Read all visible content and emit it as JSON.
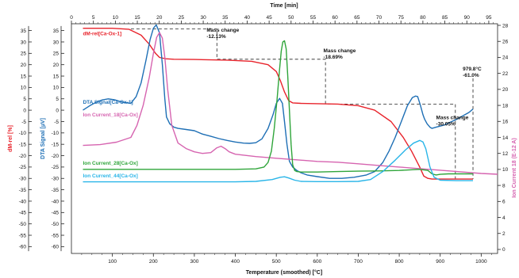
{
  "chart_data": {
    "type": "line",
    "xlabel_bottom": "Temperature (smoothed) [°C]",
    "xlabel_top": "Time [min]",
    "ylabel_left1": "dM-rel [%]",
    "ylabel_left2": "DTA Signal [µV]",
    "ylabel_right": "Ion Current  18 (E-12 A)",
    "x_temperature_range": [
      0,
      1040
    ],
    "x_temperature_ticks": [
      100,
      200,
      300,
      400,
      500,
      600,
      700,
      800,
      900,
      1000
    ],
    "x_time_range": [
      0,
      97
    ],
    "x_time_ticks": [
      0,
      5,
      10,
      15,
      20,
      25,
      30,
      35,
      40,
      45,
      50,
      55,
      60,
      65,
      70,
      75,
      80,
      85,
      90,
      95
    ],
    "y_left_range": [
      -63,
      38
    ],
    "y_left_ticks": [
      -60,
      -55,
      -50,
      -45,
      -40,
      -35,
      -30,
      -25,
      -20,
      -15,
      -10,
      -5,
      0,
      5,
      10,
      15,
      20,
      25,
      30,
      35
    ],
    "y_right_range": [
      -0.5,
      28.2
    ],
    "y_right_ticks": [
      0,
      2,
      4,
      6,
      8,
      10,
      12,
      14,
      16,
      18,
      20,
      22,
      24,
      26,
      28
    ],
    "series": [
      {
        "name": "dM-rel[Ca-Ox-1]",
        "color": "#e8232b",
        "axis": "left",
        "x": [
          28,
          100,
          140,
          170,
          190,
          205,
          215,
          230,
          250,
          300,
          380,
          440,
          480,
          500,
          510,
          520,
          530,
          540,
          560,
          650,
          700,
          740,
          780,
          810,
          830,
          850,
          860,
          870,
          880,
          900,
          980
        ],
        "y": [
          36,
          36,
          35.6,
          33,
          29,
          25,
          23.2,
          22.6,
          22.4,
          22.3,
          22,
          21.5,
          20,
          17,
          13,
          8,
          4.2,
          3.2,
          3,
          2.7,
          2,
          0,
          -5,
          -12,
          -18,
          -25,
          -29,
          -30,
          -30.3,
          -30.3,
          -30.3
        ]
      },
      {
        "name": "DTA Signal[Ca-Ox-1]",
        "color": "#1e6fb5",
        "axis": "left",
        "x": [
          28,
          45,
          60,
          75,
          90,
          105,
          125,
          145,
          158,
          170,
          182,
          192,
          200,
          207,
          215,
          222,
          228,
          232,
          240,
          250,
          260,
          280,
          300,
          320,
          340,
          360,
          380,
          400,
          420,
          435,
          450,
          465,
          480,
          492,
          500,
          508,
          515,
          520,
          526,
          532,
          540,
          550,
          560,
          575,
          600,
          630,
          660,
          690,
          720,
          740,
          760,
          775,
          790,
          805,
          820,
          832,
          840,
          845,
          852,
          858,
          862,
          868,
          875,
          880,
          890,
          910,
          940,
          970,
          980
        ],
        "y": [
          0,
          2,
          3.5,
          4.5,
          5,
          4.6,
          3.5,
          3,
          6,
          12,
          22,
          31,
          36,
          37.5,
          34,
          20,
          5,
          -3,
          -6,
          -7.5,
          -8,
          -8.5,
          -9,
          -10.5,
          -11.5,
          -12.5,
          -13.3,
          -14,
          -14.5,
          -14.6,
          -14.3,
          -12.6,
          -8,
          -2,
          3,
          5.2,
          3,
          -5,
          -15,
          -22.5,
          -25,
          -26.5,
          -27.5,
          -28.5,
          -29.2,
          -30,
          -30,
          -29.5,
          -28.5,
          -27,
          -23,
          -18,
          -12,
          -5,
          2,
          5.5,
          6.2,
          6,
          2,
          -2,
          -4,
          -6,
          -7.5,
          -8,
          -7.5,
          -6.5,
          -4,
          -1,
          0.5
        ]
      },
      {
        "name": "Ion Current_18[Ca-Ox]",
        "color": "#d664b0",
        "axis": "right",
        "x": [
          28,
          70,
          110,
          145,
          160,
          175,
          190,
          200,
          208,
          215,
          222,
          228,
          235,
          245,
          260,
          280,
          300,
          320,
          340,
          355,
          365,
          375,
          385,
          400,
          450,
          500,
          550,
          600,
          650,
          700,
          750,
          800,
          850,
          900,
          950,
          1000,
          1040
        ],
        "y": [
          13,
          13.1,
          13.4,
          14,
          15.5,
          18,
          21.5,
          24.5,
          26.5,
          27.1,
          26.4,
          24,
          20,
          15.5,
          13.3,
          12.6,
          12.2,
          12,
          12.1,
          12.7,
          12.9,
          12.6,
          12.2,
          11.9,
          11.6,
          11.4,
          11.2,
          11,
          10.9,
          10.7,
          10.5,
          10.3,
          10.1,
          9.9,
          9.7,
          9.5,
          9.4
        ]
      },
      {
        "name": "Ion Current_28[Ca-Ox]",
        "color": "#2fa53a",
        "axis": "left",
        "x": [
          28,
          200,
          400,
          450,
          470,
          480,
          488,
          495,
          502,
          508,
          512,
          516,
          520,
          524,
          528,
          532,
          536,
          540,
          545,
          550,
          560,
          600,
          650,
          700,
          750,
          800,
          850,
          870,
          880,
          890,
          900,
          920,
          980
        ],
        "y": [
          -26,
          -26,
          -26,
          -25.8,
          -25,
          -23,
          -18,
          -8,
          5,
          18,
          26,
          30,
          30.5,
          27,
          15,
          0,
          -15,
          -24,
          -26.5,
          -27,
          -27.2,
          -27.2,
          -27,
          -26.8,
          -26.7,
          -26.5,
          -26,
          -26.5,
          -28,
          -28.5,
          -28.2,
          -28,
          -28
        ]
      },
      {
        "name": "Ion Current_44[Ca-Ox]",
        "color": "#29b5e8",
        "axis": "left",
        "x": [
          28,
          200,
          400,
          450,
          490,
          510,
          520,
          530,
          545,
          560,
          600,
          650,
          700,
          730,
          760,
          790,
          815,
          835,
          850,
          858,
          865,
          875,
          885,
          900,
          940,
          980
        ],
        "y": [
          -31.5,
          -31.5,
          -31.5,
          -31.3,
          -30.5,
          -29.5,
          -29.3,
          -29.8,
          -30.8,
          -31.3,
          -31.4,
          -31.4,
          -31.3,
          -30.5,
          -27,
          -22,
          -17.5,
          -14.5,
          -13.3,
          -14,
          -17,
          -25,
          -29.5,
          -30.8,
          -31,
          -31
        ]
      }
    ],
    "series_labels": [
      {
        "text": "dM-rel[Ca-Ox-1]",
        "color": "#e8232b",
        "at": [
          28,
          33
        ]
      },
      {
        "text": "DTA Signal[Ca-Ox-1]",
        "color": "#1e6fb5",
        "at": [
          28,
          2.8
        ]
      },
      {
        "text": "Ion Current_18[Ca-Ox]",
        "color": "#d664b0",
        "at": [
          28,
          -2.8
        ]
      },
      {
        "text": "Ion Current_28[Ca-Ox]",
        "color": "#2fa53a",
        "at": [
          28,
          -24
        ]
      },
      {
        "text": "Ion Current_44[Ca-Ox]",
        "color": "#29b5e8",
        "at": [
          28,
          -29.5
        ]
      }
    ],
    "annotations": [
      {
        "lines": [
          "Mass change",
          "-12.13%"
        ],
        "at": [
          330,
          34.5
        ]
      },
      {
        "lines": [
          "Mass change",
          "-18.69%"
        ],
        "at": [
          615,
          25.5
        ]
      },
      {
        "lines": [
          "Mass change",
          "-30.05%"
        ],
        "at": [
          890,
          -4
        ]
      },
      {
        "lines": [
          "979.8°C",
          "-61.0%"
        ],
        "at": [
          955,
          17.5
        ]
      }
    ],
    "step_marker_series": [
      {
        "x": [
          145,
          355,
          355,
          620,
          620,
          937,
          937
        ],
        "y": [
          35.7,
          35.7,
          22.4,
          22.4,
          2.7,
          2.7,
          -30.3
        ]
      }
    ],
    "vertical_marker": {
      "x": 980,
      "y_from": 14,
      "y_to": -30.3
    }
  }
}
